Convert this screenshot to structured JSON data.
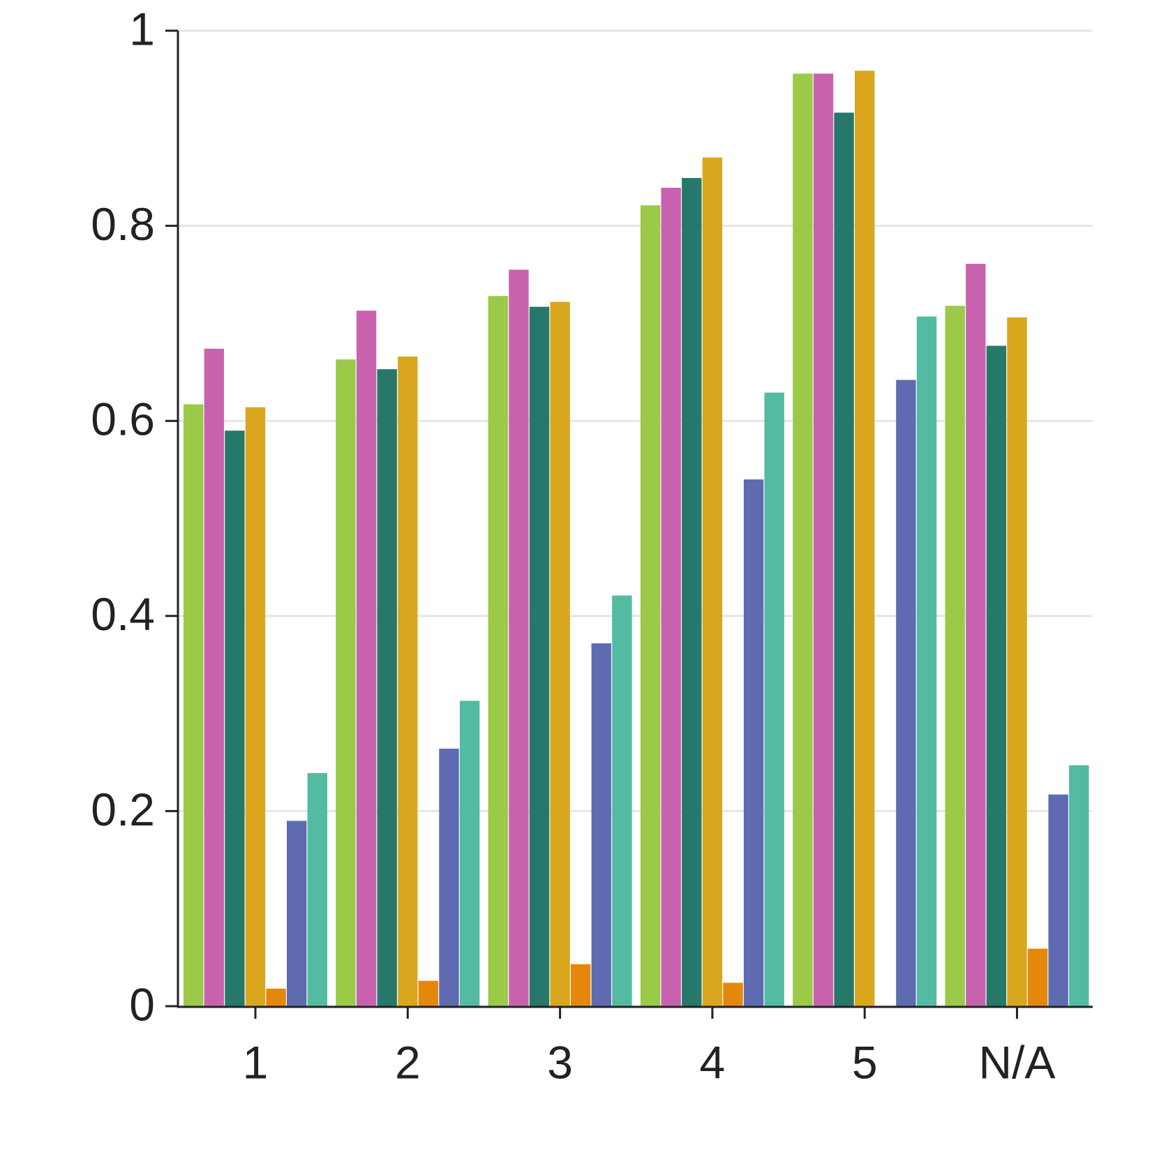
{
  "chart_data": {
    "type": "bar",
    "categories": [
      "1",
      "2",
      "3",
      "4",
      "5",
      "N/A"
    ],
    "series": [
      {
        "color": "#9bc948",
        "values": [
          0.617,
          0.663,
          0.728,
          0.821,
          0.956,
          0.718
        ]
      },
      {
        "color": "#c962ae",
        "values": [
          0.674,
          0.713,
          0.755,
          0.839,
          0.956,
          0.761
        ]
      },
      {
        "color": "#26786b",
        "values": [
          0.59,
          0.653,
          0.717,
          0.849,
          0.916,
          0.677
        ]
      },
      {
        "color": "#d9a61e",
        "values": [
          0.614,
          0.666,
          0.722,
          0.87,
          0.959,
          0.706
        ]
      },
      {
        "color": "#e5870a",
        "values": [
          0.018,
          0.026,
          0.043,
          0.024,
          null,
          0.059
        ]
      },
      {
        "color": "#5e6bb0",
        "values": [
          0.19,
          0.264,
          0.372,
          0.54,
          0.642,
          0.217
        ]
      },
      {
        "color": "#52bba1",
        "values": [
          0.239,
          0.313,
          0.421,
          0.629,
          0.707,
          0.247
        ]
      }
    ],
    "ylim": [
      0,
      1
    ],
    "yticks": [
      0,
      0.2,
      0.4,
      0.6,
      0.8,
      1
    ],
    "grid": true
  }
}
